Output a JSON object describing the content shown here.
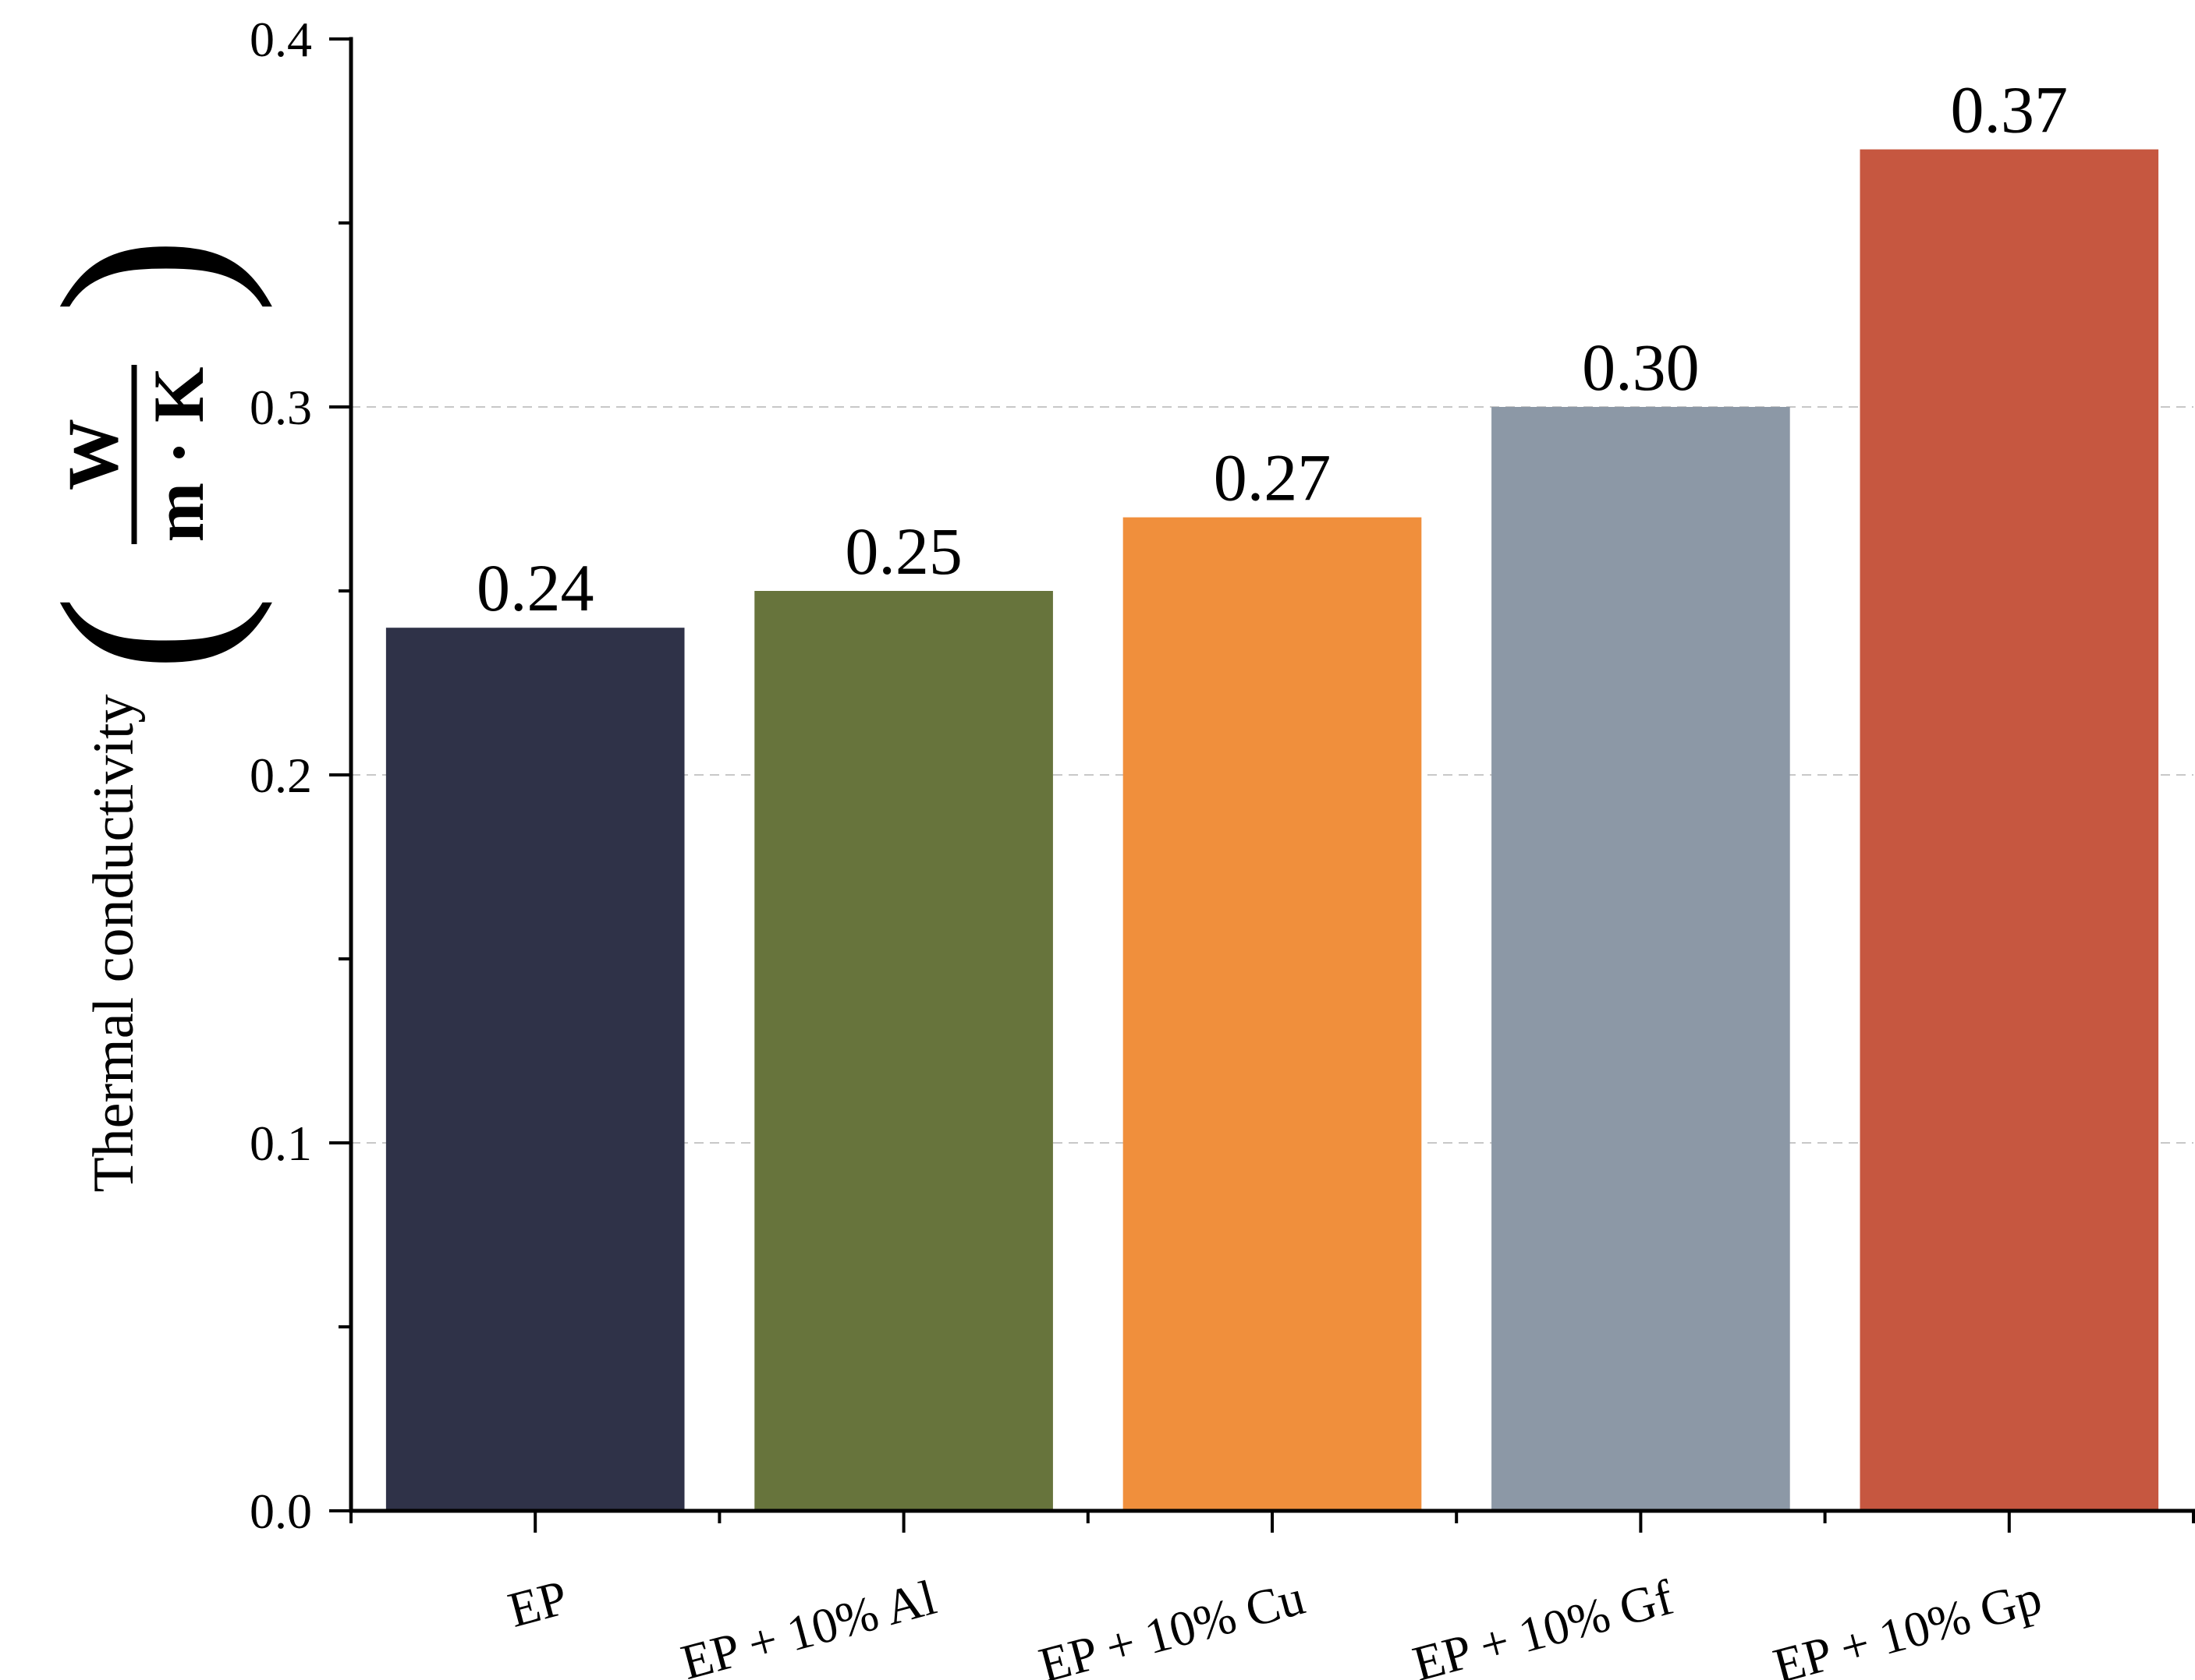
{
  "chart_data": {
    "type": "bar",
    "categories": [
      "EP",
      "EP + 10% Al",
      "EP + 10% Cu",
      "EP + 10% Gf",
      "EP + 10% Gp"
    ],
    "values": [
      0.24,
      0.25,
      0.27,
      0.3,
      0.37
    ],
    "value_labels": [
      "0.24",
      "0.25",
      "0.27",
      "0.30",
      "0.37"
    ],
    "bar_colors": [
      "#2f3248",
      "#67743c",
      "#f08f3c",
      "#8c98a6",
      "#c65740"
    ],
    "title": "",
    "xlabel": "",
    "ylabel": "Thermal conductivity",
    "ylabel_unit": {
      "numerator": "W",
      "denominator": "m · K"
    },
    "ylim": [
      0,
      0.4
    ],
    "y_ticks": [
      0.0,
      0.1,
      0.2,
      0.3,
      0.4
    ],
    "y_tick_labels": [
      "0.0",
      "0.1",
      "0.2",
      "0.3",
      "0.4"
    ],
    "grid": "horizontal dashed"
  }
}
